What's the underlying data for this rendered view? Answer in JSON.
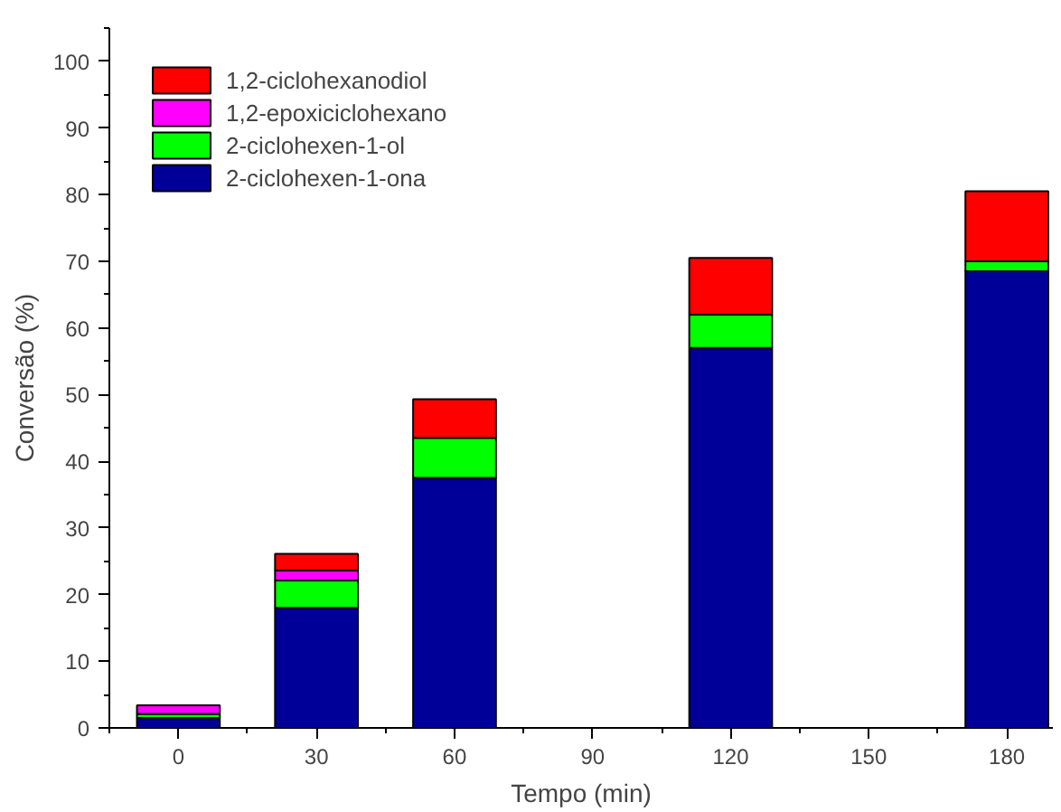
{
  "chart_data": {
    "type": "bar",
    "stacked": true,
    "xlabel": "Tempo (min)",
    "ylabel": "Conversão (%)",
    "x": [
      0,
      30,
      60,
      120,
      180
    ],
    "series": [
      {
        "name": "2-ciclohexen-1-ona",
        "color": "#000099",
        "values": [
          1.5,
          18,
          37.5,
          57,
          68.5
        ]
      },
      {
        "name": "2-ciclohexen-1-ol",
        "color": "#00ff00",
        "values": [
          0.6,
          4.1,
          6,
          5,
          1.5
        ]
      },
      {
        "name": "1,2-epoxiciclohexano",
        "color": "#ff00ff",
        "values": [
          1.3,
          1.5,
          null,
          null,
          null
        ]
      },
      {
        "name": "1,2-ciclohexanodiol",
        "color": "#ff0000",
        "values": [
          null,
          2.5,
          5.8,
          8.5,
          10.5
        ]
      }
    ],
    "xlim": [
      -15,
      190
    ],
    "ylim": [
      0,
      105
    ],
    "xticks": [
      0,
      30,
      60,
      90,
      120,
      150,
      180
    ],
    "yticks": [
      0,
      10,
      20,
      30,
      40,
      50,
      60,
      70,
      80,
      90,
      100
    ],
    "grid": false,
    "legend": "top left"
  }
}
